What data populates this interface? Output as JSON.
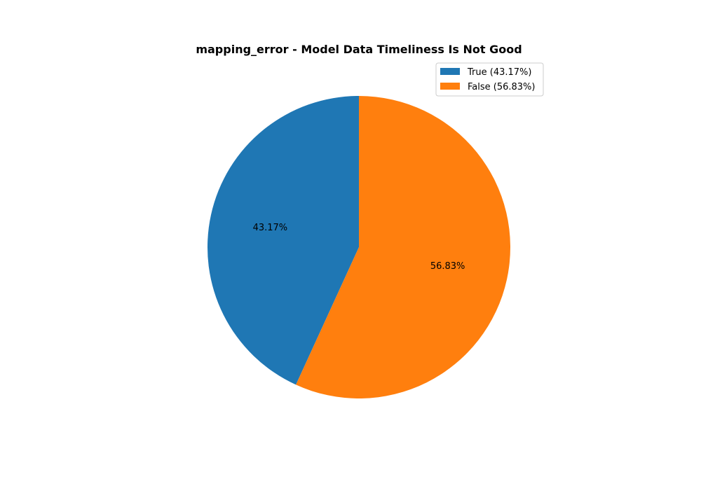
{
  "chart_data": {
    "type": "pie",
    "title": "mapping_error - Model Data Timeliness Is Not Good",
    "categories": [
      "True",
      "False"
    ],
    "values": [
      43.17,
      56.83
    ],
    "slice_labels": [
      "43.17%",
      "56.83%"
    ],
    "legend": {
      "placement": "upper-right",
      "entries": [
        "True (43.17%)",
        "False (56.83%)"
      ]
    },
    "colors": [
      "#1f77b4",
      "#ff7f0e"
    ],
    "start_angle_deg": 90,
    "direction": "counterclockwise"
  }
}
